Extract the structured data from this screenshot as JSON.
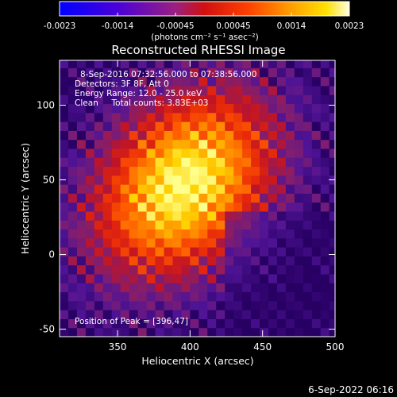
{
  "colorbar": {
    "ticks": [
      "-0.0023",
      "-0.0014",
      "-0.00045",
      "0.00045",
      "0.0014",
      "0.0023"
    ],
    "unit_label": "(photons cm⁻² s⁻¹ asec⁻²)",
    "range": [
      -0.0023,
      0.0023
    ]
  },
  "chart_data": {
    "type": "heatmap",
    "title": "Reconstructed RHESSI Image",
    "xlabel": "Heliocentric X (arcsec)",
    "ylabel": "Heliocentric Y (arcsec)",
    "xlim": [
      310,
      500
    ],
    "ylim": [
      -55,
      130
    ],
    "x_ticks": [
      350,
      400,
      450,
      500
    ],
    "y_ticks": [
      -50,
      0,
      50,
      100
    ],
    "peak": [
      396,
      47
    ],
    "info_lines": [
      "8-Sep-2016 07:32:56.000 to 07:38:56.000",
      "Detectors: 3F 8F, Att 0",
      "Energy Range: 12.0 - 25.0 keV",
      "Clean     Total counts: 3.83E+03"
    ],
    "peak_label": "Position of Peak = [396,47]"
  },
  "footer": {
    "timestamp": "6-Sep-2022 06:16"
  }
}
